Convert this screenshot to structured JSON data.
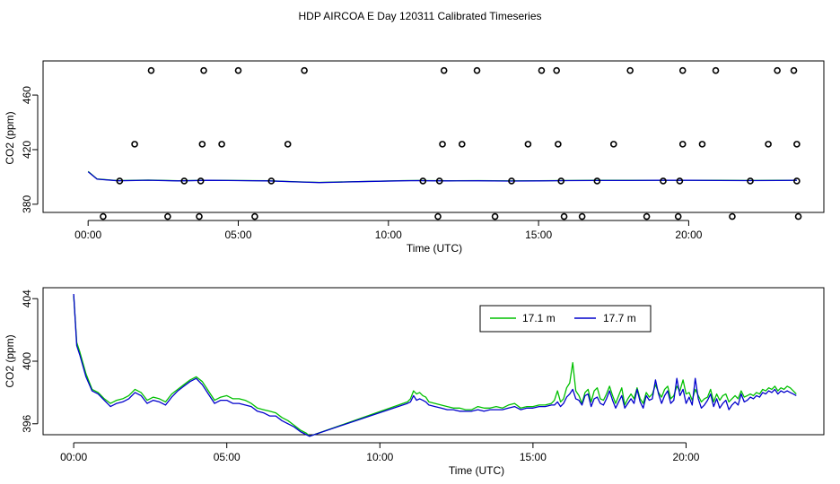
{
  "title": "HDP AIRCOA E  Day 120311  Calibrated Timeseries",
  "colors": {
    "s171": "#00c000",
    "s177": "#0000cc",
    "axis": "#000000"
  },
  "chart_data": [
    {
      "type": "scatter+line",
      "xlabel": "Time (UTC)",
      "ylabel": "CO2 (ppm)",
      "xlim": [
        -1.5,
        24.5
      ],
      "ylim": [
        374,
        485
      ],
      "xticks": [
        0,
        5,
        10,
        15,
        20
      ],
      "xtick_labels": [
        "00:00",
        "05:00",
        "10:00",
        "15:00",
        "20:00"
      ],
      "yticks": [
        380,
        420,
        460
      ],
      "ytick_labels": [
        "380",
        "420",
        "460"
      ],
      "calibration_points": [
        [
          2.1,
          478
        ],
        [
          3.85,
          478
        ],
        [
          5.0,
          478
        ],
        [
          7.2,
          478
        ],
        [
          11.85,
          478
        ],
        [
          12.95,
          478
        ],
        [
          15.1,
          478
        ],
        [
          15.6,
          478
        ],
        [
          18.05,
          478
        ],
        [
          19.8,
          478
        ],
        [
          20.9,
          478
        ],
        [
          22.95,
          478
        ],
        [
          23.5,
          478
        ],
        [
          1.55,
          424
        ],
        [
          3.8,
          424
        ],
        [
          4.45,
          424
        ],
        [
          6.65,
          424
        ],
        [
          11.8,
          424
        ],
        [
          12.45,
          424
        ],
        [
          14.65,
          424
        ],
        [
          15.65,
          424
        ],
        [
          17.5,
          424
        ],
        [
          19.8,
          424
        ],
        [
          20.45,
          424
        ],
        [
          22.65,
          424
        ],
        [
          23.6,
          424
        ],
        [
          1.05,
          397
        ],
        [
          3.2,
          397
        ],
        [
          3.75,
          397
        ],
        [
          6.1,
          397
        ],
        [
          11.15,
          397
        ],
        [
          11.7,
          397
        ],
        [
          14.1,
          397
        ],
        [
          15.75,
          397
        ],
        [
          16.95,
          397
        ],
        [
          19.15,
          397
        ],
        [
          19.7,
          397
        ],
        [
          22.05,
          397
        ],
        [
          23.6,
          397
        ],
        [
          0.5,
          371
        ],
        [
          2.65,
          371
        ],
        [
          3.7,
          371
        ],
        [
          5.55,
          371
        ],
        [
          11.65,
          371
        ],
        [
          13.55,
          371
        ],
        [
          15.85,
          371
        ],
        [
          16.45,
          371
        ],
        [
          18.6,
          371
        ],
        [
          19.65,
          371
        ],
        [
          21.45,
          371
        ],
        [
          23.65,
          371
        ]
      ],
      "series": [
        {
          "name": "",
          "color_key": "s171",
          "x": [
            0,
            0.3,
            1.0,
            2.0,
            3.0,
            4.0,
            5.0,
            6.0,
            7.0,
            7.7,
            9.0,
            10.5,
            11.0,
            11.3,
            12.0,
            13.0,
            14.0,
            15.0,
            16.0,
            17.0,
            18.0,
            19.0,
            20.0,
            21.0,
            22.0,
            23.0,
            23.6
          ],
          "y": [
            404,
            398.5,
            397.3,
            397.7,
            397.2,
            397.6,
            397.4,
            397.2,
            396.4,
            396.0,
            396.6,
            397.3,
            397.4,
            397.3,
            397.2,
            397.3,
            397.1,
            397.2,
            397.4,
            397.5,
            397.5,
            397.6,
            397.6,
            397.5,
            397.4,
            397.5,
            397.6
          ]
        },
        {
          "name": "",
          "color_key": "s177",
          "x": [
            0,
            0.3,
            1.0,
            2.0,
            3.0,
            4.0,
            5.0,
            6.0,
            7.0,
            7.7,
            9.0,
            10.5,
            11.0,
            11.3,
            12.0,
            13.0,
            14.0,
            15.0,
            16.0,
            17.0,
            18.0,
            19.0,
            20.0,
            21.0,
            22.0,
            23.0,
            23.6
          ],
          "y": [
            403.8,
            398.4,
            397.2,
            397.6,
            397.1,
            397.5,
            397.3,
            397.1,
            396.3,
            395.9,
            396.5,
            397.2,
            397.3,
            397.2,
            397.1,
            397.2,
            397.0,
            397.1,
            397.3,
            397.4,
            397.4,
            397.5,
            397.5,
            397.4,
            397.3,
            397.4,
            397.5
          ]
        }
      ]
    },
    {
      "type": "line",
      "xlabel": "Time (UTC)",
      "ylabel": "CO2 (ppm)",
      "xlim": [
        -1.0,
        24.5
      ],
      "ylim": [
        395.3,
        404.7
      ],
      "xticks": [
        0,
        5,
        10,
        15,
        20
      ],
      "xtick_labels": [
        "00:00",
        "05:00",
        "10:00",
        "15:00",
        "20:00"
      ],
      "yticks": [
        396,
        400,
        404
      ],
      "ytick_labels": [
        "396",
        "400",
        "404"
      ],
      "legend_position": "top-right",
      "series": [
        {
          "name": "17.1 m",
          "color_key": "s171",
          "x": [
            0,
            0.1,
            0.2,
            0.4,
            0.6,
            0.8,
            1.0,
            1.2,
            1.4,
            1.6,
            1.8,
            2.0,
            2.2,
            2.4,
            2.6,
            2.8,
            3.0,
            3.2,
            3.4,
            3.6,
            3.8,
            4.0,
            4.2,
            4.4,
            4.6,
            4.8,
            5.0,
            5.2,
            5.4,
            5.6,
            5.8,
            6.0,
            6.2,
            6.4,
            6.6,
            6.8,
            7.0,
            7.2,
            7.4,
            7.6,
            7.7,
            10.9,
            11.0,
            11.1,
            11.2,
            11.3,
            11.4,
            11.5,
            11.6,
            11.8,
            12.0,
            12.2,
            12.4,
            12.6,
            12.8,
            13.0,
            13.2,
            13.4,
            13.6,
            13.8,
            14.0,
            14.2,
            14.4,
            14.6,
            14.8,
            15.0,
            15.2,
            15.4,
            15.6,
            15.7,
            15.8,
            15.9,
            16.0,
            16.1,
            16.2,
            16.3,
            16.4,
            16.5,
            16.6,
            16.7,
            16.8,
            16.9,
            17.0,
            17.1,
            17.2,
            17.3,
            17.4,
            17.5,
            17.6,
            17.7,
            17.8,
            17.9,
            18.0,
            18.1,
            18.2,
            18.3,
            18.4,
            18.5,
            18.6,
            18.7,
            18.8,
            18.9,
            19.0,
            19.1,
            19.2,
            19.3,
            19.4,
            19.5,
            19.6,
            19.7,
            19.8,
            19.9,
            20.0,
            20.1,
            20.2,
            20.3,
            20.4,
            20.5,
            20.6,
            20.7,
            20.8,
            20.9,
            21.0,
            21.1,
            21.2,
            21.3,
            21.4,
            21.5,
            21.6,
            21.7,
            21.8,
            21.9,
            22.0,
            22.1,
            22.2,
            22.3,
            22.4,
            22.5,
            22.6,
            22.7,
            22.8,
            22.9,
            23.0,
            23.1,
            23.2,
            23.3,
            23.4,
            23.5,
            23.6
          ],
          "y": [
            404.2,
            401.2,
            400.6,
            399.2,
            398.2,
            398.0,
            397.6,
            397.3,
            397.5,
            397.6,
            397.8,
            398.2,
            398.0,
            397.5,
            397.7,
            397.6,
            397.4,
            397.9,
            398.2,
            398.5,
            398.8,
            399.0,
            398.7,
            398.1,
            397.5,
            397.7,
            397.8,
            397.6,
            397.6,
            397.5,
            397.3,
            397.0,
            396.9,
            396.8,
            396.7,
            396.4,
            396.2,
            395.9,
            395.6,
            395.4,
            395.2,
            397.4,
            397.6,
            398.1,
            397.9,
            398.0,
            397.8,
            397.7,
            397.4,
            397.3,
            397.2,
            397.1,
            397.0,
            397.0,
            396.9,
            396.9,
            397.1,
            397.0,
            397.0,
            397.1,
            397.0,
            397.2,
            397.3,
            397.0,
            397.1,
            397.1,
            397.2,
            397.2,
            397.3,
            397.5,
            398.1,
            397.4,
            397.6,
            398.3,
            398.6,
            399.9,
            398.1,
            397.8,
            397.3,
            398.0,
            398.2,
            397.4,
            398.1,
            398.3,
            397.6,
            397.5,
            397.9,
            398.4,
            397.8,
            397.3,
            397.8,
            398.3,
            397.2,
            397.6,
            397.9,
            397.6,
            398.3,
            397.6,
            397.3,
            398.0,
            397.7,
            397.9,
            398.5,
            398.0,
            397.7,
            398.2,
            398.4,
            397.6,
            397.8,
            398.4,
            398.1,
            398.8,
            397.9,
            398.0,
            397.5,
            398.2,
            397.8,
            397.4,
            397.6,
            397.7,
            398.2,
            397.4,
            397.9,
            397.5,
            397.8,
            397.9,
            397.4,
            397.6,
            397.8,
            397.6,
            398.1,
            397.7,
            397.8,
            397.9,
            397.8,
            398.0,
            397.9,
            398.2,
            398.1,
            398.3,
            398.2,
            398.4,
            398.1,
            398.3,
            398.2,
            398.4,
            398.3,
            398.1,
            397.9
          ]
        },
        {
          "name": "17.7 m",
          "color_key": "s177",
          "x": [
            0,
            0.1,
            0.2,
            0.4,
            0.6,
            0.8,
            1.0,
            1.2,
            1.4,
            1.6,
            1.8,
            2.0,
            2.2,
            2.4,
            2.6,
            2.8,
            3.0,
            3.2,
            3.4,
            3.6,
            3.8,
            4.0,
            4.2,
            4.4,
            4.6,
            4.8,
            5.0,
            5.2,
            5.4,
            5.6,
            5.8,
            6.0,
            6.2,
            6.4,
            6.6,
            6.8,
            7.0,
            7.2,
            7.4,
            7.6,
            7.7,
            10.9,
            11.0,
            11.1,
            11.2,
            11.3,
            11.4,
            11.5,
            11.6,
            11.8,
            12.0,
            12.2,
            12.4,
            12.6,
            12.8,
            13.0,
            13.2,
            13.4,
            13.6,
            13.8,
            14.0,
            14.2,
            14.4,
            14.6,
            14.8,
            15.0,
            15.2,
            15.4,
            15.6,
            15.7,
            15.8,
            15.9,
            16.0,
            16.1,
            16.2,
            16.3,
            16.4,
            16.5,
            16.6,
            16.7,
            16.8,
            16.9,
            17.0,
            17.1,
            17.2,
            17.3,
            17.4,
            17.5,
            17.6,
            17.7,
            17.8,
            17.9,
            18.0,
            18.1,
            18.2,
            18.3,
            18.4,
            18.5,
            18.6,
            18.7,
            18.8,
            18.9,
            19.0,
            19.1,
            19.2,
            19.3,
            19.4,
            19.5,
            19.6,
            19.7,
            19.8,
            19.9,
            20.0,
            20.1,
            20.2,
            20.3,
            20.4,
            20.5,
            20.6,
            20.7,
            20.8,
            20.9,
            21.0,
            21.1,
            21.2,
            21.3,
            21.4,
            21.5,
            21.6,
            21.7,
            21.8,
            21.9,
            22.0,
            22.1,
            22.2,
            22.3,
            22.4,
            22.5,
            22.6,
            22.7,
            22.8,
            22.9,
            23.0,
            23.1,
            23.2,
            23.3,
            23.4,
            23.5,
            23.6
          ],
          "y": [
            404.3,
            401.0,
            400.4,
            399.0,
            398.1,
            397.9,
            397.5,
            397.1,
            397.3,
            397.4,
            397.6,
            398.0,
            397.8,
            397.3,
            397.5,
            397.4,
            397.2,
            397.7,
            398.1,
            398.4,
            398.7,
            398.9,
            398.5,
            397.9,
            397.3,
            397.5,
            397.5,
            397.3,
            397.3,
            397.2,
            397.1,
            396.8,
            396.7,
            396.5,
            396.5,
            396.2,
            396.0,
            395.8,
            395.5,
            395.3,
            395.2,
            397.3,
            397.4,
            397.8,
            397.5,
            397.6,
            397.5,
            397.4,
            397.2,
            397.1,
            397.0,
            396.9,
            396.9,
            396.8,
            396.8,
            396.8,
            396.9,
            396.8,
            396.9,
            396.9,
            396.9,
            397.0,
            397.1,
            396.9,
            397.0,
            397.0,
            397.1,
            397.1,
            397.2,
            397.2,
            397.4,
            397.1,
            397.3,
            397.7,
            397.9,
            398.2,
            397.6,
            397.5,
            397.2,
            397.8,
            397.9,
            397.1,
            397.6,
            397.7,
            397.3,
            397.2,
            397.6,
            398.1,
            397.5,
            397.0,
            397.4,
            397.8,
            397.0,
            397.3,
            397.6,
            397.3,
            398.2,
            397.4,
            397.0,
            397.8,
            397.5,
            397.6,
            398.8,
            397.9,
            397.3,
            397.8,
            398.1,
            397.3,
            397.5,
            398.9,
            397.8,
            398.2,
            397.3,
            397.7,
            397.2,
            398.9,
            397.6,
            397.0,
            397.2,
            397.5,
            397.9,
            397.1,
            397.6,
            397.0,
            397.3,
            397.5,
            396.9,
            397.2,
            397.4,
            397.2,
            397.9,
            397.4,
            397.5,
            397.7,
            397.6,
            397.8,
            397.7,
            398.0,
            397.9,
            398.1,
            398.0,
            398.2,
            397.9,
            398.1,
            398.0,
            398.1,
            398.0,
            397.9,
            397.8
          ]
        }
      ]
    }
  ]
}
